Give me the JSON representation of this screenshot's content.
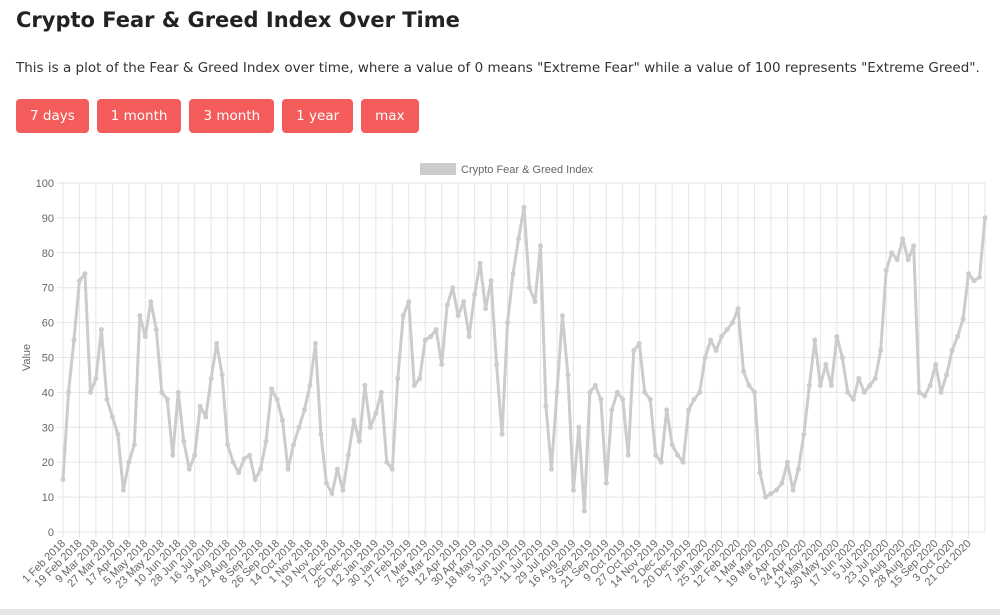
{
  "page": {
    "title": "Crypto Fear & Greed Index Over Time",
    "description": "This is a plot of the Fear & Greed Index over time, where a value of 0 means \"Extreme Fear\" while a value of 100 represents \"Extreme Greed\".",
    "buttons": [
      "7 days",
      "1 month",
      "3 month",
      "1 year",
      "max"
    ]
  },
  "chart_data": {
    "type": "line",
    "y_label": "Value",
    "ylim": [
      0,
      100
    ],
    "yticks": [
      0,
      10,
      20,
      30,
      40,
      50,
      60,
      70,
      80,
      90,
      100
    ],
    "grid": true,
    "legend": "top",
    "categories": [
      "1 Feb 2018",
      null,
      null,
      "19 Feb 2018",
      null,
      null,
      "9 Mar 2018",
      null,
      null,
      "27 Mar 2018",
      null,
      null,
      "17 Apr 2018",
      null,
      null,
      "5 May 2018",
      null,
      null,
      "23 May 2018",
      null,
      null,
      "10 Jun 2018",
      null,
      null,
      "28 Jun 2018",
      null,
      null,
      "16 Jul 2018",
      null,
      null,
      "3 Aug 2018",
      null,
      null,
      "21 Aug 2018",
      null,
      null,
      "8 Sep 2018",
      null,
      null,
      "26 Sep 2018",
      null,
      null,
      "14 Oct 2018",
      null,
      null,
      "1 Nov 2018",
      null,
      null,
      "19 Nov 2018",
      null,
      null,
      "7 Dec 2018",
      null,
      null,
      "25 Dec 2018",
      null,
      null,
      "12 Jan 2019",
      null,
      null,
      "30 Jan 2019",
      null,
      null,
      "17 Feb 2019",
      null,
      null,
      "7 Mar 2019",
      null,
      null,
      "25 Mar 2019",
      null,
      null,
      "12 Apr 2019",
      null,
      null,
      "30 Apr 2019",
      null,
      null,
      "18 May 2019",
      null,
      null,
      "5 Jun 2019",
      null,
      null,
      "23 Jun 2019",
      null,
      null,
      "11 Jul 2019",
      null,
      null,
      "29 Jul 2019",
      null,
      null,
      "16 Aug 2019",
      null,
      null,
      "3 Sep 2019",
      null,
      null,
      "21 Sep 2019",
      null,
      null,
      "9 Oct 2019",
      null,
      null,
      "27 Oct 2019",
      null,
      null,
      "14 Nov 2019",
      null,
      null,
      "2 Dec 2019",
      null,
      null,
      "20 Dec 2019",
      null,
      null,
      "7 Jan 2020",
      null,
      null,
      "25 Jan 2020",
      null,
      null,
      "12 Feb 2020",
      null,
      null,
      "1 Mar 2020",
      null,
      null,
      "19 Mar 2020",
      null,
      null,
      "6 Apr 2020",
      null,
      null,
      "24 Apr 2020",
      null,
      null,
      "12 May 2020",
      null,
      null,
      "30 May 2020",
      null,
      null,
      "17 Jun 2020",
      null,
      null,
      "5 Jul 2020",
      null,
      null,
      "23 Jul 2020",
      null,
      null,
      "10 Aug 2020",
      null,
      null,
      "28 Aug 2020",
      null,
      null,
      "15 Sep 2020",
      null,
      null,
      "3 Oct 2020",
      null,
      null,
      "21 Oct 2020",
      null,
      null,
      null
    ],
    "series": [
      {
        "name": "Crypto Fear & Greed Index",
        "color": "#cccccc",
        "values": [
          15,
          40,
          55,
          72,
          74,
          40,
          44,
          58,
          38,
          33,
          28,
          12,
          20,
          25,
          62,
          56,
          66,
          58,
          40,
          38,
          22,
          40,
          26,
          18,
          22,
          36,
          33,
          44,
          54,
          45,
          25,
          20,
          17,
          21,
          22,
          15,
          18,
          26,
          41,
          38,
          32,
          18,
          25,
          30,
          35,
          42,
          54,
          28,
          14,
          11,
          18,
          12,
          22,
          32,
          26,
          42,
          30,
          34,
          40,
          20,
          18,
          44,
          62,
          66,
          42,
          44,
          55,
          56,
          58,
          48,
          65,
          70,
          62,
          66,
          56,
          68,
          77,
          64,
          72,
          48,
          28,
          60,
          74,
          84,
          93,
          70,
          66,
          82,
          36,
          18,
          40,
          62,
          45,
          12,
          30,
          6,
          40,
          42,
          38,
          14,
          35,
          40,
          38,
          22,
          52,
          54,
          40,
          38,
          22,
          20,
          35,
          25,
          22,
          20,
          35,
          38,
          40,
          50,
          55,
          52,
          56,
          58,
          60,
          64,
          46,
          42,
          40,
          17,
          10,
          11,
          12,
          14,
          20,
          12,
          18,
          28,
          42,
          55,
          42,
          48,
          42,
          56,
          50,
          40,
          38,
          44,
          40,
          42,
          44,
          52,
          75,
          80,
          78,
          84,
          78,
          82,
          40,
          39,
          42,
          48,
          40,
          45,
          52,
          56,
          61,
          74,
          72,
          73,
          90
        ]
      }
    ]
  }
}
